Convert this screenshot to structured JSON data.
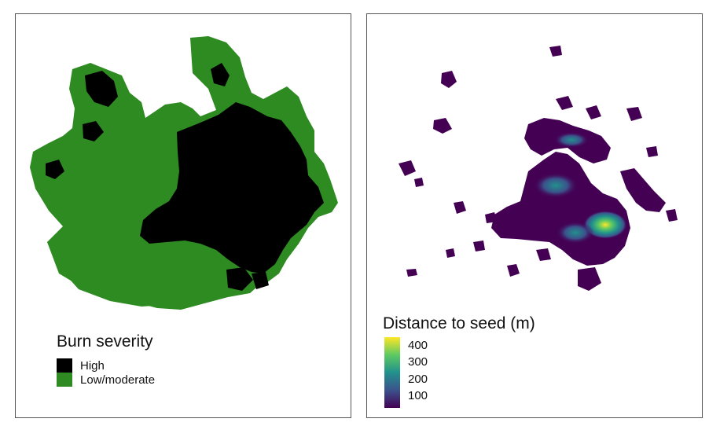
{
  "left_panel": {
    "legend_title": "Burn severity",
    "legend_items": [
      {
        "label": "High",
        "color": "#000000"
      },
      {
        "label": "Low/moderate",
        "color": "#2e8b22"
      }
    ]
  },
  "right_panel": {
    "legend_title": "Distance to seed (m)",
    "colorbar": {
      "min": 30,
      "max": 450,
      "colors": [
        "#440154",
        "#3b528b",
        "#21918c",
        "#5ec962",
        "#fde725"
      ],
      "ticks": [
        {
          "value": 400,
          "label": "400"
        },
        {
          "value": 300,
          "label": "300"
        },
        {
          "value": 200,
          "label": "200"
        },
        {
          "value": 100,
          "label": "100"
        }
      ]
    }
  }
}
